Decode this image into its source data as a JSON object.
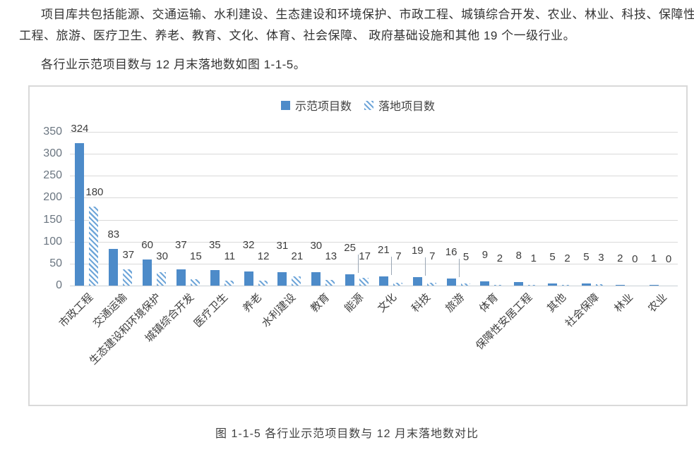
{
  "intro": {
    "line1": "项目库共包括能源、交通运输、水利建设、生态建设和环境保护、市政工程、城镇综合开发、农业、林业、科技、保障性安居",
    "line2": "工程、旅游、医疗卫生、养老、教育、文化、体育、社会保障、 政府基础设施和其他 19 个一级行业。",
    "line3": "各行业示范项目数与 12 月末落地数如图 1-1-5。"
  },
  "caption": "图 1-1-5  各行业示范项目数与 12 月末落地数对比",
  "chart_data": {
    "type": "bar",
    "title": "",
    "xlabel": "",
    "ylabel": "",
    "legend_position": "top",
    "grid": true,
    "data_labels": true,
    "ylim": [
      0,
      350
    ],
    "ytick_step": 50,
    "yticks": [
      0,
      50,
      100,
      150,
      200,
      250,
      300,
      350
    ],
    "categories": [
      "市政工程",
      "交通运输",
      "生态建设和环境保护",
      "城镇综合开发",
      "医疗卫生",
      "养老",
      "水利建设",
      "教育",
      "能源",
      "文化",
      "科技",
      "旅游",
      "体育",
      "保障性安居工程",
      "其他",
      "社会保障",
      "林业",
      "农业"
    ],
    "series": [
      {
        "name": "示范项目数",
        "style": "solid",
        "color": "#4d8bc9",
        "values": [
          324,
          83,
          60,
          37,
          35,
          32,
          31,
          30,
          25,
          21,
          19,
          16,
          9,
          8,
          5,
          5,
          2,
          1
        ]
      },
      {
        "name": "落地项目数",
        "style": "hatched",
        "color": "#6fa6d9",
        "values": [
          180,
          37,
          30,
          15,
          11,
          12,
          21,
          13,
          17,
          7,
          7,
          5,
          2,
          1,
          2,
          3,
          0,
          0
        ]
      }
    ],
    "colors": {
      "solid_bar": "#4d8bc9",
      "hatch_stripe": "#6fa6d9",
      "gridline": "#d9d9d9",
      "frame_border": "#d9d9d9",
      "tick_text": "#6a7580",
      "label_text": "#3d3d3d"
    }
  }
}
